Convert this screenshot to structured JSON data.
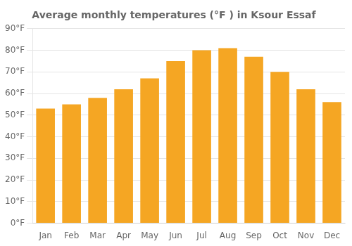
{
  "chart_data": {
    "type": "bar",
    "title": "Average monthly temperatures (°F ) in Ksour Essaf",
    "categories": [
      "Jan",
      "Feb",
      "Mar",
      "Apr",
      "May",
      "Jun",
      "Jul",
      "Aug",
      "Sep",
      "Oct",
      "Nov",
      "Dec"
    ],
    "values": [
      53,
      55,
      58,
      62,
      67,
      75,
      80,
      81,
      77,
      70,
      62,
      56
    ],
    "color": "#F5A623",
    "ylim": [
      0,
      90
    ],
    "yticks": [
      {
        "value": 0,
        "label": "0°F"
      },
      {
        "value": 10,
        "label": "10°F"
      },
      {
        "value": 20,
        "label": "20°F"
      },
      {
        "value": 30,
        "label": "30°F"
      },
      {
        "value": 40,
        "label": "40°F"
      },
      {
        "value": 50,
        "label": "50°F"
      },
      {
        "value": 60,
        "label": "60°F"
      },
      {
        "value": 70,
        "label": "70°F"
      },
      {
        "value": 80,
        "label": "80°F"
      },
      {
        "value": 90,
        "label": "90°F"
      }
    ],
    "grid": true
  }
}
